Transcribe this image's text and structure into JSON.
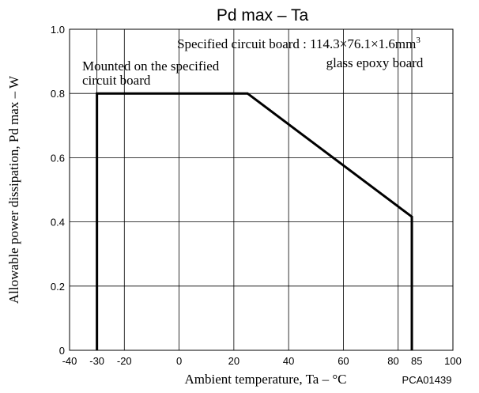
{
  "chart_data": {
    "type": "line",
    "title": "Pd max – Ta",
    "xlabel": "Ambient temperature, Ta – °C",
    "ylabel": "Allowable power dissipation, Pd max – W",
    "code": "PCA01439",
    "xlim": [
      -40,
      100
    ],
    "ylim": [
      0,
      1.0
    ],
    "x_ticks": [
      {
        "value": -40,
        "label": "-40"
      },
      {
        "value": -30,
        "label": "-30"
      },
      {
        "value": -20,
        "label": "-20"
      },
      {
        "value": 0,
        "label": "0"
      },
      {
        "value": 20,
        "label": "20"
      },
      {
        "value": 40,
        "label": "40"
      },
      {
        "value": 60,
        "label": "60"
      },
      {
        "value": 80,
        "label": "80"
      },
      {
        "value": 85,
        "label": "85"
      },
      {
        "value": 100,
        "label": "100"
      }
    ],
    "y_ticks": [
      {
        "value": 0,
        "label": "0"
      },
      {
        "value": 0.2,
        "label": "0.2"
      },
      {
        "value": 0.4,
        "label": "0.4"
      },
      {
        "value": 0.6,
        "label": "0.6"
      },
      {
        "value": 0.8,
        "label": "0.8"
      },
      {
        "value": 1.0,
        "label": "1.0"
      }
    ],
    "grid_x": [
      -30,
      -20,
      0,
      20,
      40,
      60,
      80,
      85
    ],
    "grid_y": [
      0.2,
      0.4,
      0.6,
      0.8
    ],
    "grid": true,
    "series": [
      {
        "x": [
          -30,
          -30,
          25,
          85,
          85
        ],
        "y": [
          0,
          0.8,
          0.8,
          0.416,
          0
        ]
      }
    ],
    "annotations": {
      "board_spec_prefix": "Specified circuit board : 114.3×76.1×1.6mm",
      "board_spec_sup": "3",
      "board_material": "glass epoxy board",
      "mounted_line1": "Mounted on the specified",
      "mounted_line2": "circuit board"
    }
  }
}
